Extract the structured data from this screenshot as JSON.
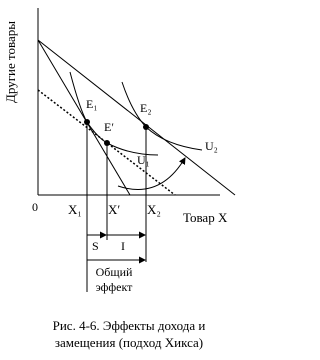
{
  "axes": {
    "y_label": "Другие товары",
    "x_label": "Товар X",
    "origin": "0"
  },
  "ticks": {
    "x1": "X₁",
    "x_prime": "X′",
    "x2": "X₂"
  },
  "points": {
    "e1": "E₁",
    "e_prime": "E′",
    "e2": "E₂"
  },
  "curves": {
    "u1": "U₁",
    "u2": "U₂"
  },
  "effects": {
    "substitution": "S",
    "income": "I",
    "total_line1": "Общий",
    "total_line2": "эффект"
  },
  "caption": {
    "line1": "Рис. 4-6. Эффекты дохода и",
    "line2": "замещения (подход Хикса)"
  }
}
